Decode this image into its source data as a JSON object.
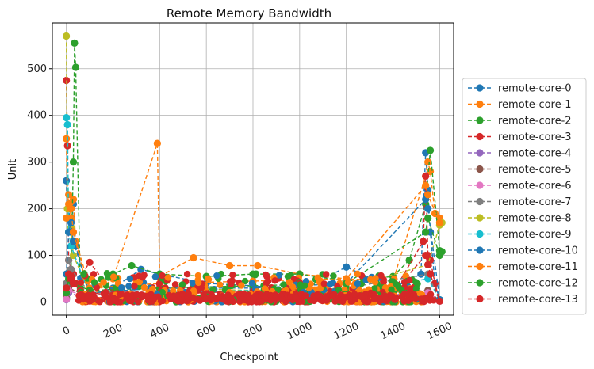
{
  "chart_data": {
    "type": "line",
    "title": "Remote Memory Bandwidth",
    "xlabel": "Checkpoint",
    "ylabel": "Unit",
    "xlim": [
      -60,
      1660
    ],
    "ylim": [
      -28,
      598
    ],
    "xticks": [
      0,
      200,
      400,
      600,
      800,
      1000,
      1200,
      1400,
      1600
    ],
    "yticks": [
      0,
      100,
      200,
      300,
      400,
      500
    ],
    "grid": true,
    "legend_position": "outside-right",
    "line_style": "dashed",
    "marker": "circle",
    "series": [
      {
        "name": "remote-core-0",
        "color": "#1f77b4",
        "x": [
          0,
          5,
          10,
          20,
          30,
          40,
          100,
          200,
          320,
          400,
          600,
          800,
          1000,
          1200,
          1400,
          1520,
          1540,
          1550,
          1560,
          1580,
          1600
        ],
        "y": [
          260,
          180,
          200,
          150,
          210,
          120,
          15,
          30,
          70,
          60,
          40,
          35,
          25,
          75,
          30,
          60,
          320,
          240,
          150,
          40,
          5
        ]
      },
      {
        "name": "remote-core-1",
        "color": "#ff7f0e",
        "x": [
          0,
          5,
          10,
          20,
          30,
          40,
          100,
          200,
          390,
          400,
          545,
          700,
          820,
          1000,
          1200,
          1400,
          1540,
          1550,
          1560,
          1580,
          1600
        ],
        "y": [
          350,
          200,
          230,
          180,
          220,
          130,
          10,
          50,
          340,
          55,
          95,
          78,
          78,
          60,
          50,
          45,
          270,
          300,
          280,
          190,
          180
        ]
      },
      {
        "name": "remote-core-2",
        "color": "#2ca02c",
        "x": [
          0,
          10,
          20,
          30,
          35,
          40,
          60,
          100,
          200,
          280,
          400,
          600,
          800,
          1000,
          1200,
          1400,
          1470,
          1540,
          1560,
          1600,
          1610
        ],
        "y": [
          10,
          40,
          60,
          300,
          555,
          503,
          30,
          20,
          60,
          78,
          60,
          55,
          60,
          60,
          45,
          55,
          90,
          210,
          325,
          110,
          108
        ]
      },
      {
        "name": "remote-core-3",
        "color": "#d62728",
        "x": [
          0,
          5,
          10,
          20,
          30,
          40,
          100,
          200,
          400,
          600,
          800,
          1000,
          1200,
          1400,
          1530,
          1540,
          1550,
          1560,
          1580,
          1600
        ],
        "y": [
          475,
          335,
          90,
          70,
          60,
          40,
          85,
          20,
          15,
          20,
          25,
          20,
          30,
          20,
          130,
          270,
          100,
          90,
          40,
          2
        ]
      },
      {
        "name": "remote-core-4",
        "color": "#9467bd",
        "x": [
          0,
          10,
          100,
          400,
          800,
          1200,
          1550,
          1600
        ],
        "y": [
          5,
          20,
          5,
          10,
          10,
          10,
          20,
          2
        ]
      },
      {
        "name": "remote-core-5",
        "color": "#8c564b",
        "x": [
          0,
          10,
          100,
          400,
          800,
          1200,
          1550,
          1600
        ],
        "y": [
          8,
          30,
          10,
          12,
          15,
          12,
          25,
          3
        ]
      },
      {
        "name": "remote-core-6",
        "color": "#e377c2",
        "x": [
          0,
          10,
          100,
          400,
          800,
          1200,
          1550,
          1600
        ],
        "y": [
          6,
          25,
          8,
          8,
          10,
          10,
          20,
          2
        ]
      },
      {
        "name": "remote-core-7",
        "color": "#7f7f7f",
        "x": [
          0,
          10,
          20,
          100,
          400,
          800,
          1200,
          1550,
          1600
        ],
        "y": [
          40,
          90,
          70,
          20,
          25,
          20,
          30,
          60,
          4
        ]
      },
      {
        "name": "remote-core-8",
        "color": "#bcbd22",
        "x": [
          0,
          5,
          10,
          20,
          30,
          100,
          400,
          800,
          1200,
          1550,
          1600,
          1610
        ],
        "y": [
          570,
          200,
          150,
          160,
          100,
          20,
          30,
          25,
          30,
          80,
          165,
          170
        ]
      },
      {
        "name": "remote-core-9",
        "color": "#17becf",
        "x": [
          0,
          5,
          10,
          20,
          100,
          400,
          800,
          1200,
          1550,
          1600
        ],
        "y": [
          395,
          380,
          150,
          120,
          15,
          20,
          25,
          20,
          50,
          5
        ]
      },
      {
        "name": "remote-core-10",
        "color": "#1f77b4",
        "x": [
          0,
          10,
          20,
          30,
          100,
          400,
          800,
          1200,
          1540,
          1550,
          1600
        ],
        "y": [
          60,
          150,
          170,
          130,
          20,
          30,
          30,
          40,
          220,
          200,
          5
        ]
      },
      {
        "name": "remote-core-11",
        "color": "#ff7f0e",
        "x": [
          0,
          10,
          20,
          30,
          100,
          400,
          800,
          1200,
          1540,
          1550,
          1600
        ],
        "y": [
          180,
          210,
          200,
          150,
          30,
          40,
          45,
          50,
          250,
          230,
          170
        ]
      },
      {
        "name": "remote-core-12",
        "color": "#2ca02c",
        "x": [
          0,
          10,
          20,
          30,
          100,
          400,
          800,
          1200,
          1540,
          1550,
          1600
        ],
        "y": [
          20,
          50,
          45,
          40,
          25,
          30,
          35,
          40,
          150,
          180,
          100
        ]
      },
      {
        "name": "remote-core-13",
        "color": "#d62728",
        "x": [
          0,
          10,
          20,
          30,
          60,
          100,
          200,
          400,
          600,
          800,
          1000,
          1200,
          1400,
          1540,
          1550,
          1560,
          1600
        ],
        "y": [
          30,
          60,
          50,
          40,
          25,
          20,
          15,
          18,
          20,
          22,
          20,
          18,
          20,
          100,
          80,
          60,
          2
        ]
      }
    ]
  }
}
